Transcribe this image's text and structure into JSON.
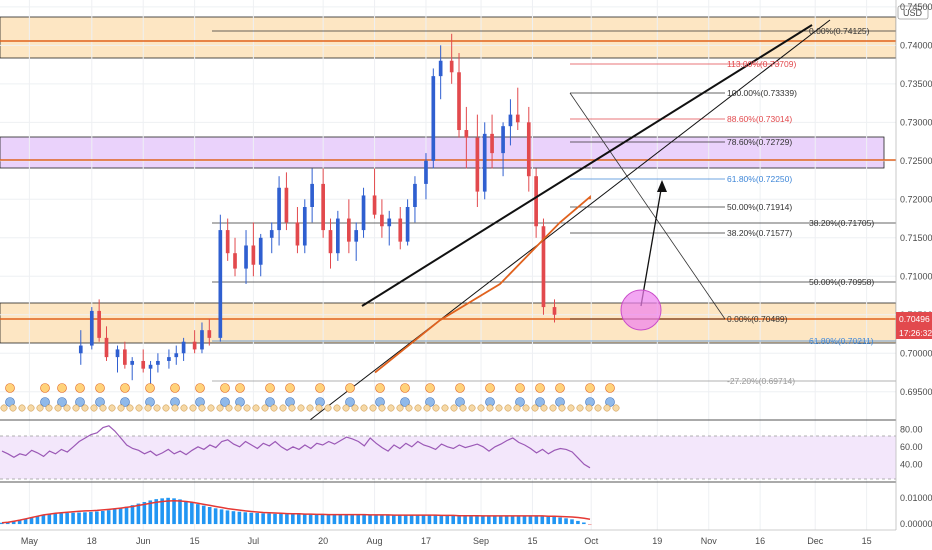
{
  "currency": "USD",
  "price_ticks": [
    "0.74500",
    "0.74000",
    "0.73500",
    "0.73000",
    "0.72500",
    "0.72000",
    "0.71500",
    "0.71000",
    "0.70500",
    "0.70000",
    "0.69500"
  ],
  "last_price": "0.70496",
  "countdown": "17:26:32",
  "date_ticks": [
    "May",
    "18",
    "Jun",
    "15",
    "Jul",
    "20",
    "Aug",
    "17",
    "Sep",
    "15",
    "Oct",
    "19",
    "Nov",
    "16",
    "Dec",
    "15"
  ],
  "rsi_ticks": [
    "80.00",
    "60.00",
    "40.00"
  ],
  "macd_ticks": [
    "0.01000",
    "0.00000"
  ],
  "fib_labels": {
    "f0_top": "0.00%(0.74125)",
    "f113": "113.00%(0.73709)",
    "f100": "100.00%(0.73339)",
    "f886": "88.60%(0.73014)",
    "f786": "78.60%(0.72729)",
    "f618a": "61.80%(0.72250)",
    "f50a": "50.00%(0.71914)",
    "f382b": "38.20%(0.71705)",
    "f382a": "38.20%(0.71577)",
    "f50b": "50.00%(0.70958)",
    "f0_mid": "0.00%(0.70489)",
    "f618b": "61.80%(0.70211)",
    "fneg": "-27.20%(0.69714)"
  },
  "colors": {
    "up": "#2f5fd0",
    "down": "#e2494d",
    "zone_orange": "#fde6c3",
    "zone_purple": "#ead2fb",
    "orange_line": "#e0621e",
    "blue_fib": "#3f87d8",
    "red_fib": "#e2494d",
    "rsi": "#9b59b6",
    "macd_bar": "#2196f3",
    "macd_signal": "#e53935"
  },
  "chart_data": {
    "type": "candlestick",
    "ylim": [
      0.6925,
      0.7455
    ],
    "x_dates": [
      "2020-04-23",
      "2020-12-23"
    ],
    "candles_first_date": "2020-05-15",
    "candles": [
      [
        0.7,
        0.703,
        0.6985,
        0.701
      ],
      [
        0.701,
        0.706,
        0.7005,
        0.7055
      ],
      [
        0.7055,
        0.707,
        0.7015,
        0.702
      ],
      [
        0.702,
        0.7035,
        0.699,
        0.6995
      ],
      [
        0.6995,
        0.701,
        0.6975,
        0.7005
      ],
      [
        0.7005,
        0.7015,
        0.698,
        0.6985
      ],
      [
        0.6985,
        0.6995,
        0.6965,
        0.699
      ],
      [
        0.699,
        0.7005,
        0.6975,
        0.698
      ],
      [
        0.698,
        0.699,
        0.696,
        0.6985
      ],
      [
        0.6985,
        0.7,
        0.6975,
        0.699
      ],
      [
        0.699,
        0.7005,
        0.698,
        0.6995
      ],
      [
        0.6995,
        0.701,
        0.6985,
        0.7
      ],
      [
        0.7,
        0.702,
        0.699,
        0.7015
      ],
      [
        0.7015,
        0.703,
        0.7,
        0.7005
      ],
      [
        0.7005,
        0.704,
        0.7,
        0.703
      ],
      [
        0.703,
        0.7045,
        0.701,
        0.702
      ],
      [
        0.702,
        0.718,
        0.7015,
        0.716
      ],
      [
        0.716,
        0.7175,
        0.712,
        0.713
      ],
      [
        0.713,
        0.715,
        0.71,
        0.711
      ],
      [
        0.711,
        0.716,
        0.709,
        0.714
      ],
      [
        0.714,
        0.717,
        0.71,
        0.7115
      ],
      [
        0.7115,
        0.7155,
        0.71,
        0.715
      ],
      [
        0.715,
        0.717,
        0.713,
        0.716
      ],
      [
        0.716,
        0.723,
        0.714,
        0.7215
      ],
      [
        0.7215,
        0.7235,
        0.716,
        0.717
      ],
      [
        0.717,
        0.719,
        0.713,
        0.714
      ],
      [
        0.714,
        0.72,
        0.713,
        0.719
      ],
      [
        0.719,
        0.724,
        0.717,
        0.722
      ],
      [
        0.722,
        0.724,
        0.715,
        0.716
      ],
      [
        0.716,
        0.7175,
        0.711,
        0.713
      ],
      [
        0.713,
        0.7185,
        0.712,
        0.7175
      ],
      [
        0.7175,
        0.72,
        0.713,
        0.7145
      ],
      [
        0.7145,
        0.717,
        0.712,
        0.716
      ],
      [
        0.716,
        0.7215,
        0.715,
        0.7205
      ],
      [
        0.7205,
        0.724,
        0.7175,
        0.718
      ],
      [
        0.718,
        0.72,
        0.715,
        0.7165
      ],
      [
        0.7165,
        0.7185,
        0.714,
        0.7175
      ],
      [
        0.7175,
        0.719,
        0.7135,
        0.7145
      ],
      [
        0.7145,
        0.72,
        0.714,
        0.719
      ],
      [
        0.719,
        0.723,
        0.717,
        0.722
      ],
      [
        0.722,
        0.726,
        0.72,
        0.725
      ],
      [
        0.725,
        0.737,
        0.724,
        0.736
      ],
      [
        0.736,
        0.74,
        0.733,
        0.738
      ],
      [
        0.738,
        0.7415,
        0.735,
        0.7365
      ],
      [
        0.7365,
        0.739,
        0.728,
        0.729
      ],
      [
        0.729,
        0.732,
        0.724,
        0.728
      ],
      [
        0.728,
        0.731,
        0.719,
        0.721
      ],
      [
        0.721,
        0.73,
        0.72,
        0.7285
      ],
      [
        0.7285,
        0.731,
        0.724,
        0.726
      ],
      [
        0.726,
        0.73,
        0.723,
        0.7295
      ],
      [
        0.7295,
        0.733,
        0.727,
        0.731
      ],
      [
        0.731,
        0.7345,
        0.729,
        0.73
      ],
      [
        0.73,
        0.732,
        0.721,
        0.723
      ],
      [
        0.723,
        0.724,
        0.715,
        0.7165
      ],
      [
        0.7165,
        0.7175,
        0.705,
        0.706
      ],
      [
        0.706,
        0.707,
        0.704,
        0.705
      ]
    ],
    "ma": [
      [
        0.6975,
        0.6965
      ],
      [
        0.7043,
        0.707
      ],
      [
        0.709,
        0.714
      ],
      [
        0.717,
        0.7195
      ],
      [
        0.7203,
        0.72
      ]
    ],
    "rsi": {
      "ylim": [
        22,
        86
      ],
      "values": [
        55,
        52,
        48,
        52,
        50,
        56,
        53,
        49,
        55,
        52,
        57,
        54,
        60,
        66,
        70,
        74,
        76,
        82,
        84,
        78,
        70,
        62,
        58,
        56,
        52,
        55,
        50,
        53,
        57,
        52,
        55,
        51,
        56,
        60,
        57,
        62,
        59,
        66,
        68,
        63,
        60,
        66,
        62,
        58,
        64,
        61,
        66,
        60,
        56,
        60,
        57,
        62,
        58,
        64,
        62,
        66,
        63,
        67,
        71,
        69,
        66,
        61,
        70,
        64,
        59,
        55,
        62,
        58,
        64,
        60,
        66,
        62,
        60,
        57,
        63,
        60,
        58,
        62,
        59,
        61,
        63,
        60,
        55,
        60,
        63,
        67,
        70,
        65,
        62,
        58,
        53,
        57,
        52,
        56,
        58,
        57,
        54,
        47,
        40,
        36
      ]
    },
    "macd": {
      "ylim": [
        -0.0015,
        0.0145
      ],
      "bars": [
        0.0005,
        0.0008,
        0.0012,
        0.0015,
        0.002,
        0.0025,
        0.003,
        0.0035,
        0.0038,
        0.004,
        0.0041,
        0.0042,
        0.0043,
        0.0044,
        0.0045,
        0.0046,
        0.0048,
        0.005,
        0.0053,
        0.0057,
        0.0061,
        0.0066,
        0.0072,
        0.0078,
        0.0084,
        0.009,
        0.0095,
        0.0098,
        0.01,
        0.0098,
        0.0094,
        0.0088,
        0.0082,
        0.0076,
        0.007,
        0.0065,
        0.006,
        0.0056,
        0.0052,
        0.0049,
        0.0047,
        0.0045,
        0.0043,
        0.0042,
        0.0041,
        0.004,
        0.0039,
        0.0039,
        0.0038,
        0.0038,
        0.0037,
        0.0037,
        0.0036,
        0.0036,
        0.0036,
        0.0035,
        0.0035,
        0.0035,
        0.0036,
        0.0036,
        0.0036,
        0.0035,
        0.0035,
        0.0035,
        0.0034,
        0.0034,
        0.0034,
        0.0034,
        0.0034,
        0.0034,
        0.0034,
        0.0034,
        0.0034,
        0.0033,
        0.0033,
        0.0032,
        0.0032,
        0.0032,
        0.0032,
        0.0031,
        0.0031,
        0.0031,
        0.0031,
        0.0031,
        0.0031,
        0.0031,
        0.0031,
        0.0031,
        0.0031,
        0.003,
        0.003,
        0.0029,
        0.0028,
        0.0027,
        0.0025,
        0.0022,
        0.0018,
        0.0012,
        0.0006,
        -0.0002
      ],
      "signal": [
        0.0005,
        0.0007,
        0.0011,
        0.0015,
        0.002,
        0.0025,
        0.003,
        0.0035,
        0.0038,
        0.0041,
        0.0043,
        0.0045,
        0.0047,
        0.0049,
        0.005,
        0.0051,
        0.0052,
        0.0054,
        0.0056,
        0.0058,
        0.0061,
        0.0064,
        0.0067,
        0.0071,
        0.0075,
        0.0079,
        0.0083,
        0.0086,
        0.0088,
        0.0089,
        0.0088,
        0.0086,
        0.0083,
        0.0079,
        0.0075,
        0.0071,
        0.0067,
        0.0063,
        0.0059,
        0.0056,
        0.0053,
        0.005,
        0.0048,
        0.0046,
        0.0044,
        0.0043,
        0.0042,
        0.0041,
        0.004,
        0.0039,
        0.0039,
        0.0038,
        0.0038,
        0.0037,
        0.0037,
        0.0036,
        0.0036,
        0.0036,
        0.0036,
        0.0036,
        0.0036,
        0.0036,
        0.0035,
        0.0035,
        0.0035,
        0.0035,
        0.0034,
        0.0034,
        0.0034,
        0.0034,
        0.0034,
        0.0034,
        0.0034,
        0.0034,
        0.0033,
        0.0033,
        0.0033,
        0.0032,
        0.0032,
        0.0032,
        0.0032,
        0.0031,
        0.0031,
        0.0031,
        0.0031,
        0.0031,
        0.0031,
        0.0031,
        0.0031,
        0.0031,
        0.0031,
        0.0031,
        0.003,
        0.003,
        0.0029,
        0.0028,
        0.0027,
        0.0025,
        0.0022,
        0.0018
      ]
    }
  }
}
